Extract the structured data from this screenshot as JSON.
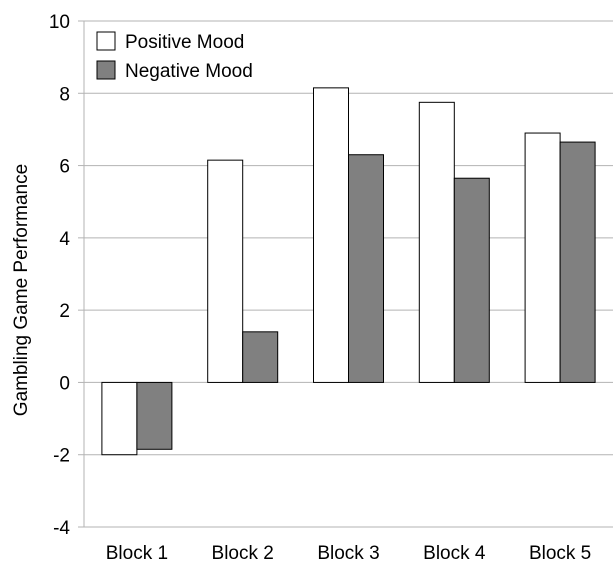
{
  "chart_data": {
    "type": "bar",
    "title": "",
    "xlabel": "",
    "ylabel": "Gambling Game Performance",
    "ylim": [
      -4,
      10
    ],
    "yticks": [
      -4,
      -2,
      0,
      2,
      4,
      6,
      8,
      10
    ],
    "grid": true,
    "legend_position": "top-left",
    "categories": [
      "Block 1",
      "Block 2",
      "Block 3",
      "Block 4",
      "Block 5"
    ],
    "series": [
      {
        "name": "Positive Mood",
        "color": "#ffffff",
        "values": [
          -2.0,
          6.15,
          8.15,
          7.75,
          6.9
        ]
      },
      {
        "name": "Negative Mood",
        "color": "#808080",
        "values": [
          -1.85,
          1.4,
          6.3,
          5.65,
          6.65
        ]
      }
    ]
  }
}
